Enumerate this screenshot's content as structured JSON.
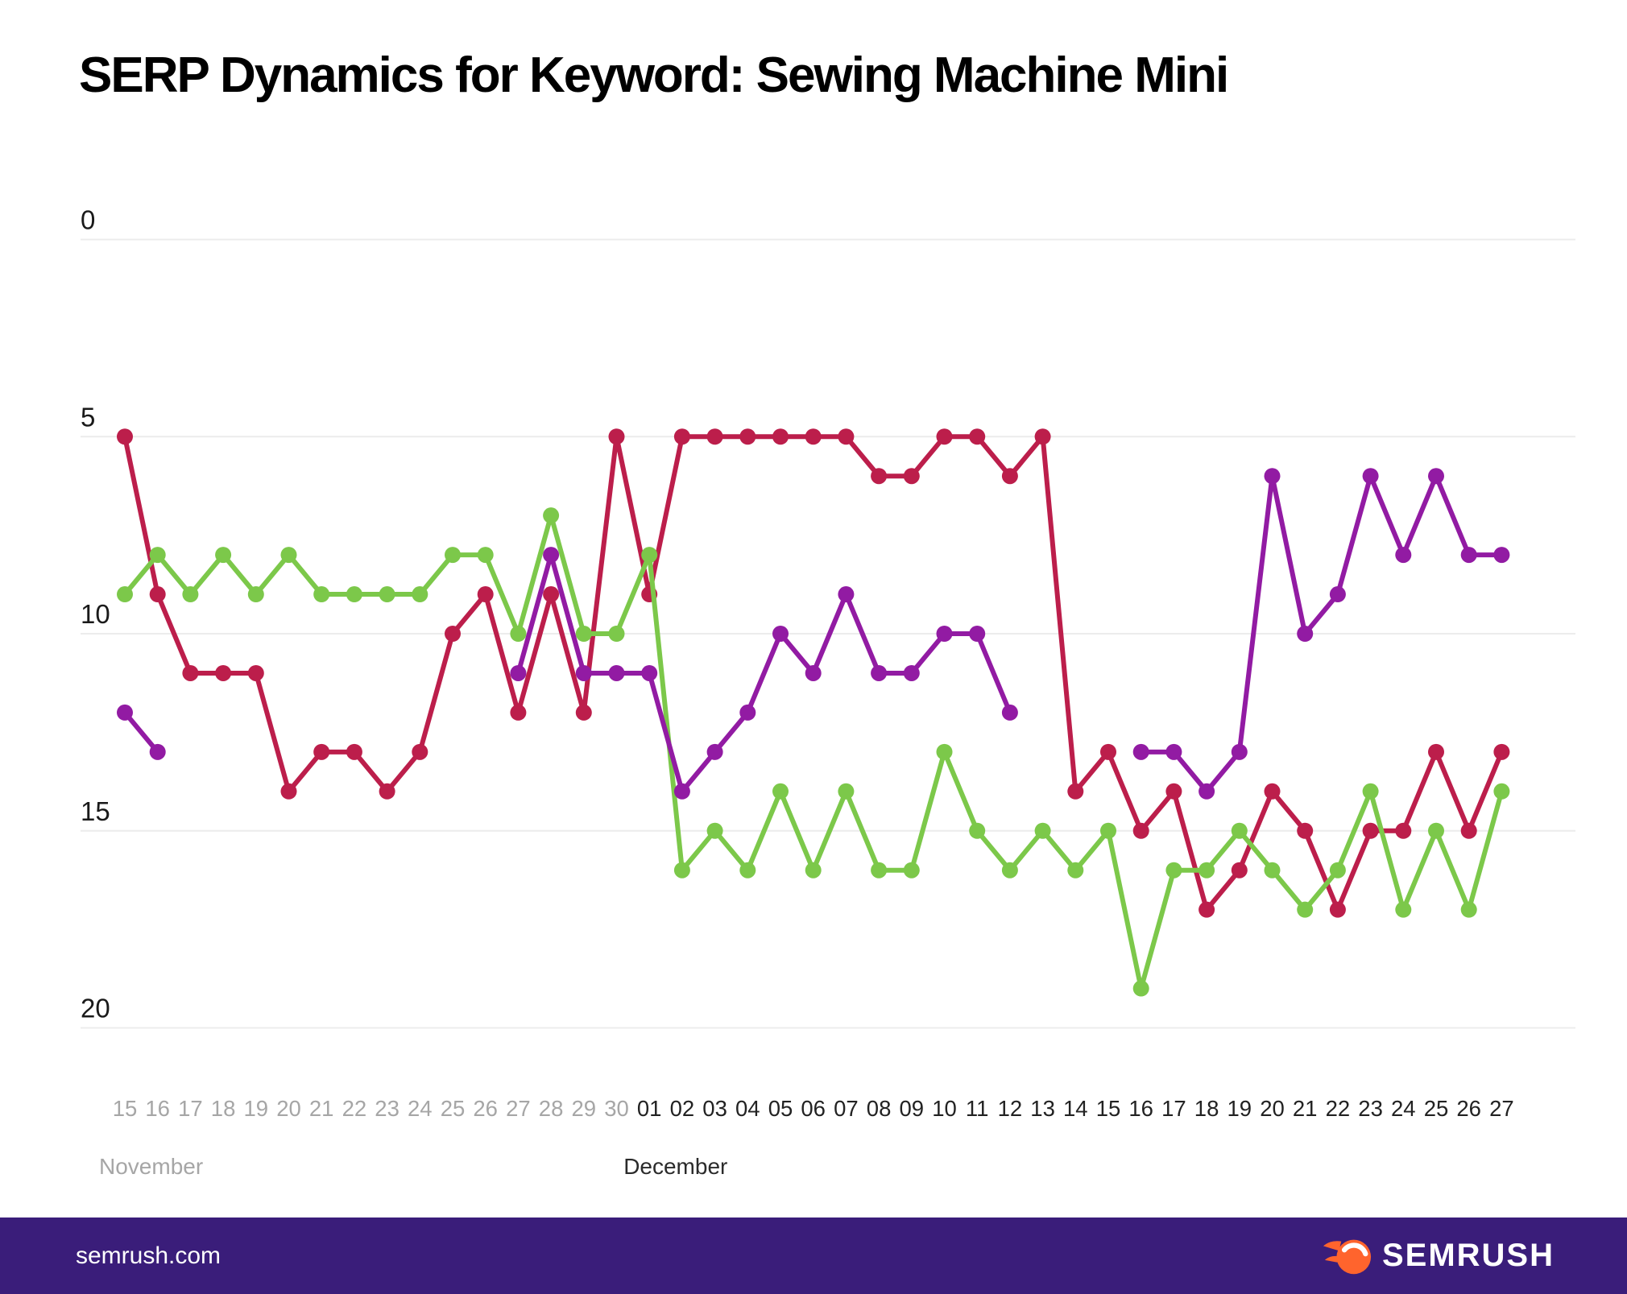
{
  "title": "SERP Dynamics for Keyword: Sewing Machine Mini",
  "footer": {
    "site": "semrush.com",
    "logo_text": "SEMRUSH"
  },
  "colors": {
    "background": "#ffffff",
    "title_text": "#000000",
    "gridline": "#ececec",
    "axis_tick_text": "#1a1a1a",
    "muted_axis_text": "#a6a6a6",
    "december_axis_text": "#222222",
    "footer_background": "#3a1d7a",
    "footer_text": "#ffffff",
    "logo_orange": "#ff642d",
    "series_crimson": "#bc1e4b",
    "series_green": "#7cc84a",
    "series_purple": "#921ba3"
  },
  "chart_data": {
    "type": "line",
    "title": "SERP Dynamics for Keyword: Sewing Machine Mini",
    "xlabel": "",
    "ylabel": "",
    "y_ticks": [
      0,
      5,
      10,
      15,
      20
    ],
    "y_range": [
      0,
      20
    ],
    "y_inverted": true,
    "grid": "horizontal",
    "legend": "none",
    "day_labels": [
      "15",
      "16",
      "17",
      "18",
      "19",
      "20",
      "21",
      "22",
      "23",
      "24",
      "25",
      "26",
      "27",
      "28",
      "29",
      "30",
      "01",
      "02",
      "03",
      "04",
      "05",
      "06",
      "07",
      "08",
      "09",
      "10",
      "11",
      "12",
      "13",
      "14",
      "15",
      "16",
      "17",
      "18",
      "19",
      "20",
      "21",
      "22",
      "23",
      "24",
      "25",
      "26",
      "27"
    ],
    "months": [
      {
        "label": "November",
        "start_index": 0,
        "count": 16,
        "muted": true
      },
      {
        "label": "December",
        "start_index": 16,
        "count": 27,
        "muted": false
      }
    ],
    "series": [
      {
        "name": "crimson",
        "color": "#bc1e4b",
        "values": [
          5,
          9,
          11,
          11,
          11,
          14,
          13,
          13,
          14,
          13,
          10,
          9,
          12,
          9,
          12,
          5,
          9,
          5,
          5,
          5,
          5,
          5,
          5,
          6,
          6,
          5,
          5,
          6,
          5,
          14,
          13,
          15,
          14,
          17,
          16,
          14,
          15,
          17,
          15,
          15,
          13,
          15,
          13
        ]
      },
      {
        "name": "green",
        "color": "#7cc84a",
        "values": [
          9,
          8,
          9,
          8,
          9,
          8,
          9,
          9,
          9,
          9,
          8,
          8,
          10,
          7,
          10,
          10,
          8,
          16,
          15,
          16,
          14,
          16,
          14,
          16,
          16,
          13,
          15,
          16,
          15,
          16,
          15,
          19,
          16,
          16,
          15,
          16,
          17,
          16,
          14,
          17,
          15,
          17,
          14
        ]
      },
      {
        "name": "purple",
        "color": "#921ba3",
        "values": [
          12,
          13,
          null,
          null,
          null,
          null,
          null,
          null,
          null,
          null,
          null,
          null,
          11,
          8,
          11,
          11,
          11,
          14,
          13,
          12,
          10,
          11,
          9,
          11,
          11,
          10,
          10,
          12,
          null,
          null,
          null,
          13,
          13,
          14,
          13,
          6,
          10,
          9,
          6,
          8,
          6,
          8,
          8
        ]
      }
    ]
  }
}
